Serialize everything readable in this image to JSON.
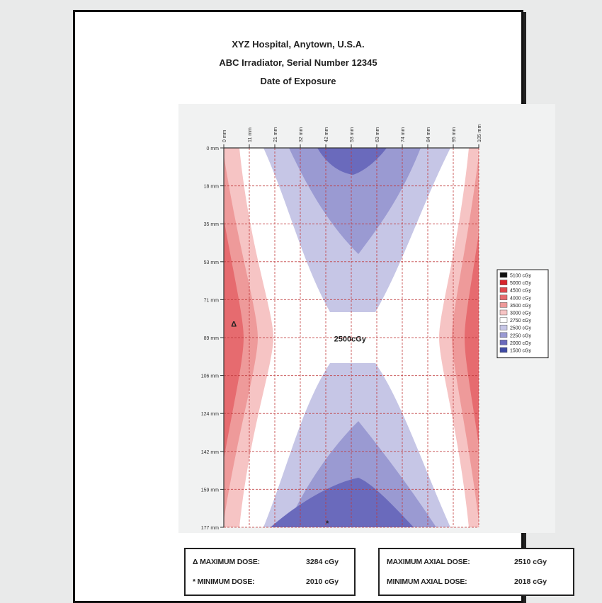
{
  "header": {
    "line1": "XYZ Hospital, Anytown, U.S.A.",
    "line2": "ABC Irradiator, Serial Number 12345",
    "line3": "Date of Exposure"
  },
  "chart_data": {
    "type": "heatmap",
    "title": "",
    "x_ticks": [
      "0 mm",
      "11 mm",
      "21 mm",
      "32 mm",
      "42 mm",
      "53 mm",
      "63 mm",
      "74 mm",
      "84 mm",
      "95 mm",
      "105 mm"
    ],
    "y_ticks": [
      "0 mm",
      "18 mm",
      "35 mm",
      "53 mm",
      "71 mm",
      "89 mm",
      "106 mm",
      "124 mm",
      "142 mm",
      "159 mm",
      "177 mm"
    ],
    "x_range_mm": [
      0,
      105
    ],
    "y_range_mm": [
      0,
      177
    ],
    "grid": true,
    "legend_position": "right",
    "legend": [
      {
        "label": "5100 cGy",
        "color": "#111111"
      },
      {
        "label": "5000 cGy",
        "color": "#d8242c"
      },
      {
        "label": "4500 cGy",
        "color": "#e0474d"
      },
      {
        "label": "4000 cGy",
        "color": "#e66b6f"
      },
      {
        "label": "3500 cGy",
        "color": "#ee9a9a"
      },
      {
        "label": "3000 cGy",
        "color": "#f6c4c4"
      },
      {
        "label": "2750 cGy",
        "color": "#ffffff"
      },
      {
        "label": "2500 cGy",
        "color": "#c6c6e6"
      },
      {
        "label": "2250 cGy",
        "color": "#9a9ad2"
      },
      {
        "label": "2000 cGy",
        "color": "#6a6abc"
      },
      {
        "label": "1500 cGy",
        "color": "#3f4aa4"
      }
    ],
    "annotations": [
      {
        "text": "2500cGy",
        "x_mm": 52,
        "y_mm": 89
      },
      {
        "text": "Δ",
        "x_mm": 3,
        "y_mm": 82,
        "meaning": "maximum dose"
      },
      {
        "text": "*",
        "x_mm": 42,
        "y_mm": 175,
        "meaning": "minimum dose"
      }
    ]
  },
  "summary": {
    "max_dose_label": "Δ MAXIMUM DOSE:",
    "max_dose_value": "3284 cGy",
    "min_dose_label": "* MINIMUM DOSE:",
    "min_dose_value": "2010 cGy",
    "max_axial_label": "MAXIMUM AXIAL DOSE:",
    "max_axial_value": "2510 cGy",
    "min_axial_label": "MINIMUM AXIAL DOSE:",
    "min_axial_value": "2018 cGy"
  }
}
